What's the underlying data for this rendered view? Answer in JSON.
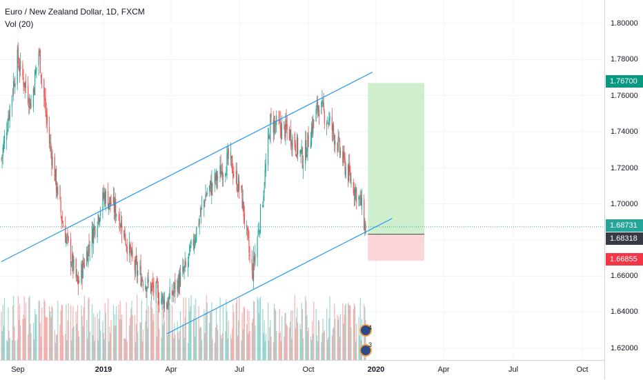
{
  "legend": {
    "title": "Euro / New Zealand Dollar, 1D, FXCM",
    "volume": "Vol (20)"
  },
  "price_axis": {
    "ticks": [
      "1.80000",
      "1.78000",
      "1.76000",
      "1.74000",
      "1.72000",
      "1.70000",
      "1.66000",
      "1.64000",
      "1.62000"
    ],
    "badges": {
      "target": {
        "label": "1.76700",
        "color": "#089981"
      },
      "current": {
        "label": "1.68731",
        "color": "#26a69a"
      },
      "entry": {
        "label": "1.68318",
        "color": "#363a45"
      },
      "stop": {
        "label": "1.66855",
        "color": "#f23645"
      }
    }
  },
  "time_axis": {
    "ticks": [
      {
        "label": "Sep",
        "bold": false
      },
      {
        "label": "2019",
        "bold": true
      },
      {
        "label": "Apr",
        "bold": false
      },
      {
        "label": "Jul",
        "bold": false
      },
      {
        "label": "Oct",
        "bold": false
      },
      {
        "label": "2020",
        "bold": true
      },
      {
        "label": "Apr",
        "bold": false
      },
      {
        "label": "Jul",
        "bold": false
      },
      {
        "label": "Oct",
        "bold": false
      }
    ]
  },
  "events": [
    {
      "icon": "event-flag-icon",
      "count": "4"
    },
    {
      "icon": "event-flag-icon",
      "count": "3"
    }
  ],
  "colors": {
    "up": "#26a69a",
    "down": "#ef5350",
    "channel": "#2196f3",
    "profit_zone": "#c9ecc9",
    "loss_zone": "#fbd0d3"
  },
  "chart_data": {
    "type": "candlestick",
    "symbol": "EURNZD",
    "timeframe": "1D",
    "ylim": [
      1.61,
      1.81
    ],
    "x_range": [
      "2018-08-20",
      "2020-11-01"
    ],
    "price_anchors": [
      {
        "date": "2018-08-20",
        "price": 1.725
      },
      {
        "date": "2018-09-10",
        "price": 1.78
      },
      {
        "date": "2018-09-28",
        "price": 1.755
      },
      {
        "date": "2018-10-08",
        "price": 1.785
      },
      {
        "date": "2018-10-20",
        "price": 1.74
      },
      {
        "date": "2018-11-08",
        "price": 1.69
      },
      {
        "date": "2018-11-28",
        "price": 1.655
      },
      {
        "date": "2018-12-15",
        "price": 1.68
      },
      {
        "date": "2019-01-02",
        "price": 1.705
      },
      {
        "date": "2019-01-20",
        "price": 1.695
      },
      {
        "date": "2019-02-10",
        "price": 1.665
      },
      {
        "date": "2019-03-01",
        "price": 1.655
      },
      {
        "date": "2019-03-25",
        "price": 1.645
      },
      {
        "date": "2019-04-20",
        "price": 1.665
      },
      {
        "date": "2019-05-15",
        "price": 1.705
      },
      {
        "date": "2019-06-15",
        "price": 1.725
      },
      {
        "date": "2019-07-01",
        "price": 1.705
      },
      {
        "date": "2019-07-15",
        "price": 1.66
      },
      {
        "date": "2019-07-28",
        "price": 1.7
      },
      {
        "date": "2019-08-08",
        "price": 1.745
      },
      {
        "date": "2019-09-01",
        "price": 1.74
      },
      {
        "date": "2019-09-20",
        "price": 1.725
      },
      {
        "date": "2019-10-10",
        "price": 1.755
      },
      {
        "date": "2019-10-25",
        "price": 1.745
      },
      {
        "date": "2019-11-15",
        "price": 1.72
      },
      {
        "date": "2019-12-05",
        "price": 1.7
      },
      {
        "date": "2019-12-12",
        "price": 1.683
      }
    ],
    "channel": {
      "upper": [
        {
          "date": "2018-08-20",
          "price": 1.668
        },
        {
          "date": "2019-12-20",
          "price": 1.773
        }
      ],
      "lower": [
        {
          "date": "2019-03-25",
          "price": 1.628
        },
        {
          "date": "2020-01-15",
          "price": 1.692
        }
      ]
    },
    "position": {
      "start": "2019-12-14",
      "end": "2020-02-26",
      "target": 1.767,
      "entry": 1.68318,
      "stop": 1.66855
    },
    "current_price": 1.68731
  }
}
